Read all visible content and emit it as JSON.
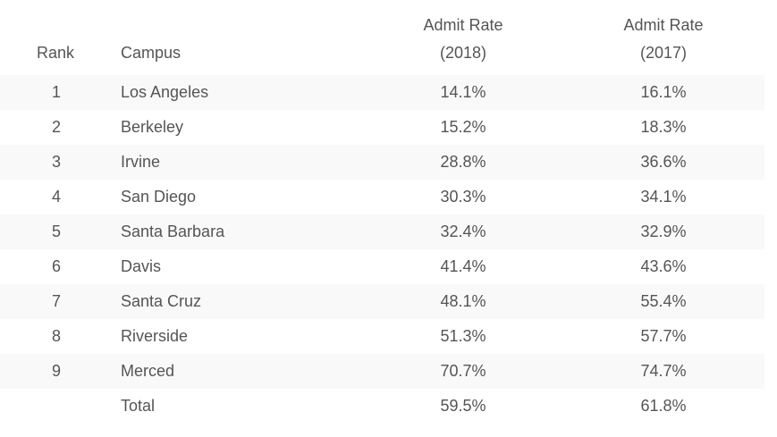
{
  "header": {
    "rank": "Rank",
    "campus": "Campus",
    "rate2018": [
      "Admit Rate",
      "(2018)"
    ],
    "rate2017": [
      "Admit Rate",
      "(2017)"
    ]
  },
  "rows": [
    {
      "rank": "1",
      "campus": "Los Angeles",
      "rate2018": "14.1%",
      "rate2017": "16.1%"
    },
    {
      "rank": "2",
      "campus": "Berkeley",
      "rate2018": "15.2%",
      "rate2017": "18.3%"
    },
    {
      "rank": "3",
      "campus": "Irvine",
      "rate2018": "28.8%",
      "rate2017": "36.6%"
    },
    {
      "rank": "4",
      "campus": "San Diego",
      "rate2018": "30.3%",
      "rate2017": "34.1%"
    },
    {
      "rank": "5",
      "campus": "Santa Barbara",
      "rate2018": "32.4%",
      "rate2017": "32.9%"
    },
    {
      "rank": "6",
      "campus": "Davis",
      "rate2018": "41.4%",
      "rate2017": "43.6%"
    },
    {
      "rank": "7",
      "campus": "Santa Cruz",
      "rate2018": "48.1%",
      "rate2017": "55.4%"
    },
    {
      "rank": "8",
      "campus": "Riverside",
      "rate2018": "51.3%",
      "rate2017": "57.7%"
    },
    {
      "rank": "9",
      "campus": "Merced",
      "rate2018": "70.7%",
      "rate2017": "74.7%"
    },
    {
      "rank": "",
      "campus": "Total",
      "rate2018": "59.5%",
      "rate2017": "61.8%"
    }
  ]
}
